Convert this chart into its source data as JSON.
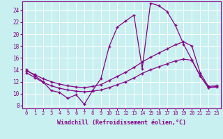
{
  "xlabel": "Windchill (Refroidissement éolien,°C)",
  "background_color": "#c8f0f0",
  "line_color": "#880088",
  "xlim": [
    -0.5,
    23.5
  ],
  "ylim": [
    7.5,
    25.5
  ],
  "yticks": [
    8,
    10,
    12,
    14,
    16,
    18,
    20,
    22,
    24
  ],
  "xticks": [
    0,
    1,
    2,
    3,
    4,
    5,
    6,
    7,
    8,
    9,
    10,
    11,
    12,
    13,
    14,
    15,
    16,
    17,
    18,
    19,
    20,
    21,
    22,
    23
  ],
  "line1_x": [
    0,
    1,
    2,
    3,
    4,
    5,
    6,
    7,
    8,
    9,
    10,
    11,
    12,
    13,
    14,
    15,
    16,
    17,
    18,
    19,
    20,
    21,
    22,
    23
  ],
  "line1_y": [
    14.0,
    13.0,
    12.0,
    10.5,
    10.2,
    9.2,
    9.8,
    8.2,
    10.5,
    12.5,
    17.9,
    21.2,
    22.2,
    23.2,
    14.2,
    25.2,
    24.8,
    23.8,
    21.5,
    18.3,
    15.7,
    13.0,
    11.0,
    11.2
  ],
  "line2_x": [
    0,
    1,
    2,
    3,
    4,
    5,
    6,
    7,
    8,
    9,
    10,
    11,
    12,
    13,
    14,
    15,
    16,
    17,
    18,
    19,
    20,
    21,
    22,
    23
  ],
  "line2_y": [
    13.8,
    13.2,
    12.5,
    12.0,
    11.6,
    11.3,
    11.1,
    11.0,
    11.2,
    11.5,
    12.2,
    12.9,
    13.6,
    14.4,
    15.3,
    16.1,
    16.8,
    17.5,
    18.2,
    18.7,
    18.0,
    13.5,
    11.2,
    11.3
  ],
  "line3_x": [
    0,
    1,
    2,
    3,
    4,
    5,
    6,
    7,
    8,
    9,
    10,
    11,
    12,
    13,
    14,
    15,
    16,
    17,
    18,
    19,
    20,
    21,
    22,
    23
  ],
  "line3_y": [
    13.5,
    12.7,
    11.9,
    11.3,
    10.9,
    10.6,
    10.4,
    10.3,
    10.4,
    10.6,
    11.0,
    11.5,
    12.0,
    12.6,
    13.4,
    14.0,
    14.5,
    15.0,
    15.5,
    15.8,
    15.6,
    13.0,
    11.0,
    11.1
  ]
}
